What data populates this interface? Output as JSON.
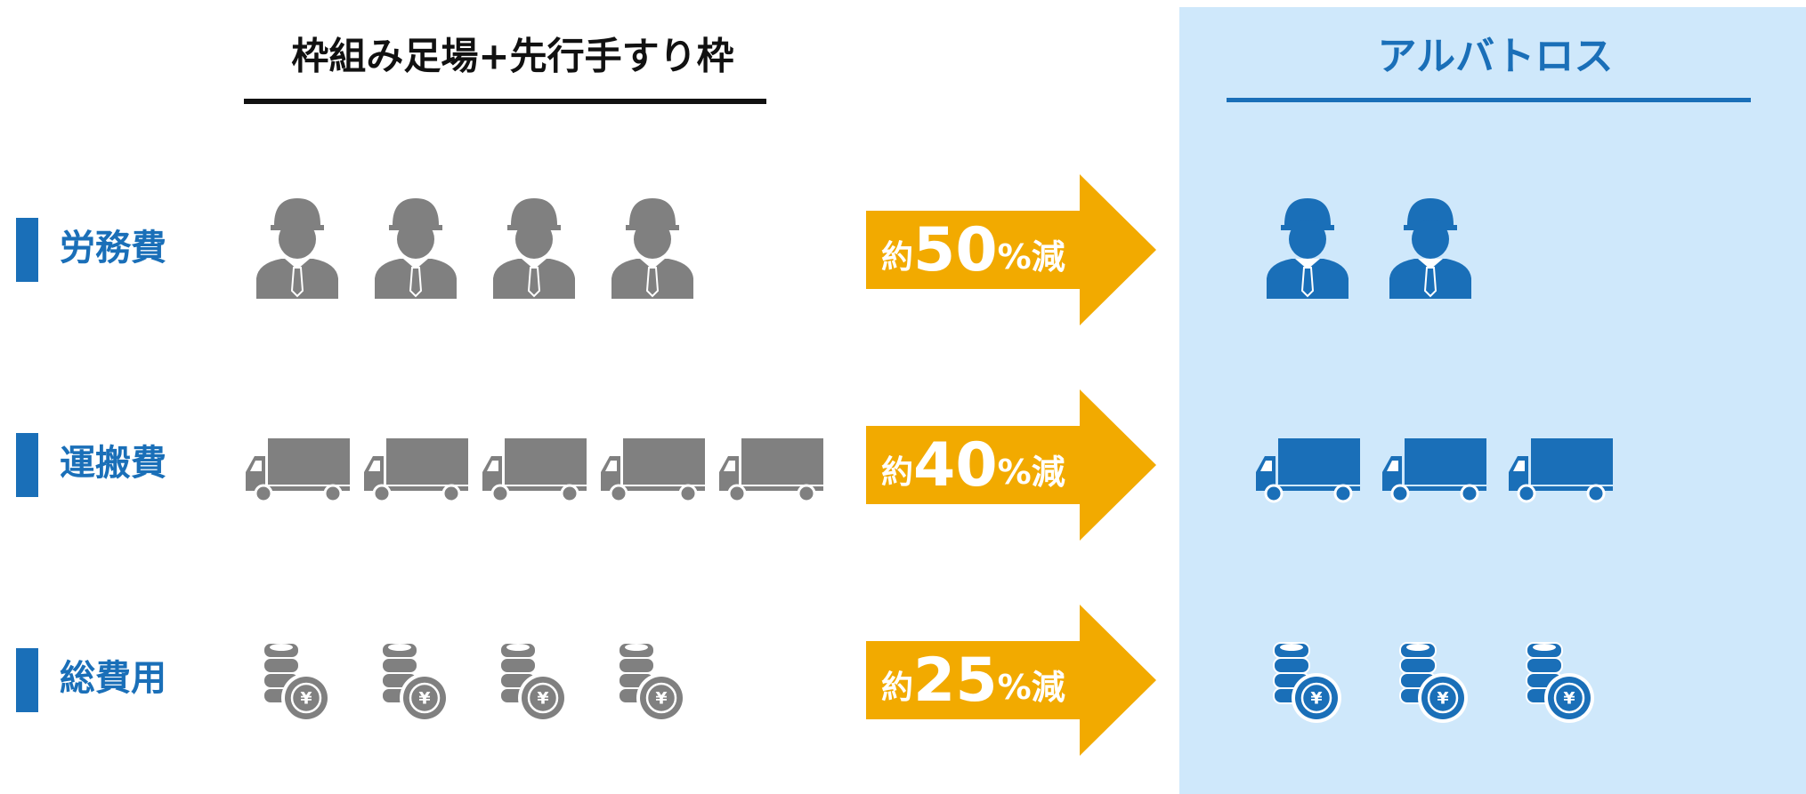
{
  "header": {
    "left": "枠組み足場+先行手すり枠",
    "right": "アルバトロス"
  },
  "coin_symbol": "¥",
  "rows": [
    {
      "label": "労務費",
      "icon": "person",
      "before": 4,
      "after": 2,
      "prefix": "約",
      "reduction": 50,
      "suffix": "%減"
    },
    {
      "label": "運搬費",
      "icon": "truck",
      "before": 5,
      "after": 3,
      "prefix": "約",
      "reduction": 40,
      "suffix": "%減"
    },
    {
      "label": "総費用",
      "icon": "coin",
      "before": 4,
      "after": 3,
      "prefix": "約",
      "reduction": 25,
      "suffix": "%減"
    }
  ]
}
